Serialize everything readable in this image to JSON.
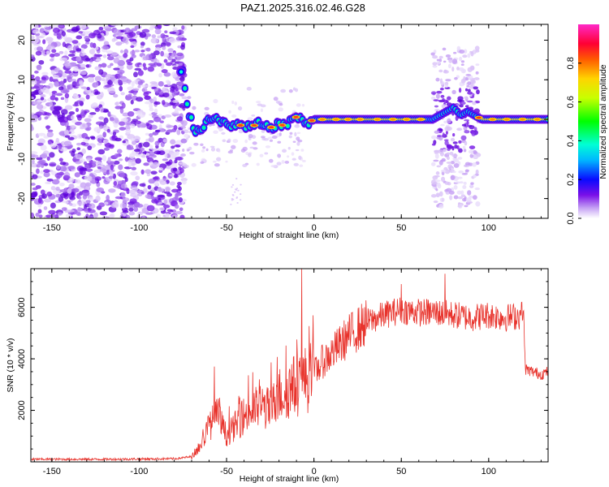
{
  "title": "PAZ1.2025.316.02.46.G28",
  "chart_data": [
    {
      "type": "heatmap",
      "name": "spectrogram",
      "xlabel": "Height of straight line (km)",
      "ylabel": "Frequency (Hz)",
      "xlim": [
        -162,
        134
      ],
      "ylim": [
        -25,
        24
      ],
      "xticks": [
        "-150",
        "-100",
        "-50",
        "0",
        "50",
        "100"
      ],
      "xtick_values": [
        -150,
        -100,
        -50,
        0,
        50,
        100
      ],
      "yticks": [
        "-20",
        "-10",
        "0",
        "10",
        "20"
      ],
      "ytick_values": [
        -20,
        -10,
        0,
        10,
        20
      ],
      "ridge": {
        "description_values": "dominant frequency track (Hz) vs height (km)",
        "x": [
          -75,
          -72,
          -68,
          -64,
          -60,
          -56,
          -52,
          -48,
          -44,
          -40,
          -36,
          -32,
          -28,
          -24,
          -20,
          -16,
          -12,
          -8,
          -4,
          0,
          4,
          10,
          20,
          30,
          40,
          50,
          60,
          68,
          72,
          76,
          80,
          84,
          88,
          92,
          96,
          100,
          110,
          120,
          130,
          134
        ],
        "y": [
          12,
          2,
          -3,
          -2,
          0,
          1,
          -1,
          -2,
          -1,
          -2,
          -2,
          -1,
          -2,
          -2,
          -1,
          -2,
          1,
          0,
          -1,
          0,
          0,
          0,
          0,
          0,
          0,
          0,
          0,
          0,
          1,
          2,
          3,
          1,
          2,
          1,
          0,
          0,
          0,
          0,
          0,
          0
        ]
      },
      "colorbar": {
        "label": "Normalized spectral amplitude",
        "ticks": [
          "0.0",
          "0.2",
          "0.4",
          "0.6",
          "0.8"
        ],
        "tick_values": [
          0.0,
          0.2,
          0.4,
          0.6,
          0.8
        ],
        "range": [
          0,
          1
        ]
      }
    },
    {
      "type": "line",
      "name": "snr",
      "xlabel": "Height of straight line (km)",
      "ylabel": "SNR (10 * v/v)",
      "xlim": [
        -162,
        134
      ],
      "ylim": [
        0,
        7500
      ],
      "xticks": [
        "-150",
        "-100",
        "-50",
        "0",
        "50",
        "100"
      ],
      "xtick_values": [
        -150,
        -100,
        -50,
        0,
        50,
        100
      ],
      "yticks": [
        "2000",
        "4000",
        "6000"
      ],
      "ytick_values": [
        2000,
        4000,
        6000
      ],
      "color": "#e8332c",
      "envelope": {
        "x": [
          -162,
          -120,
          -80,
          -70,
          -65,
          -60,
          -55,
          -50,
          -45,
          -40,
          -35,
          -30,
          -25,
          -20,
          -15,
          -10,
          -5,
          0,
          5,
          10,
          20,
          30,
          40,
          50,
          60,
          70,
          80,
          90,
          100,
          110,
          120,
          121,
          125,
          130,
          134
        ],
        "y": [
          100,
          100,
          120,
          200,
          600,
          1400,
          1800,
          1000,
          1400,
          1800,
          2000,
          2200,
          2000,
          2600,
          2800,
          3000,
          3200,
          3400,
          3900,
          4200,
          4900,
          5400,
          5700,
          5900,
          5800,
          5800,
          5700,
          5600,
          5700,
          5600,
          5700,
          3600,
          3500,
          3400,
          3500
        ]
      },
      "peaks": [
        {
          "x": -57,
          "y": 3700
        },
        {
          "x": -7,
          "y": 7500
        },
        {
          "x": 50,
          "y": 6900
        },
        {
          "x": 75,
          "y": 7300
        },
        {
          "x": 119,
          "y": 6200
        }
      ]
    }
  ],
  "colors": {
    "background": "#ffffff",
    "axes": "#000000",
    "line": "#e8332c"
  }
}
